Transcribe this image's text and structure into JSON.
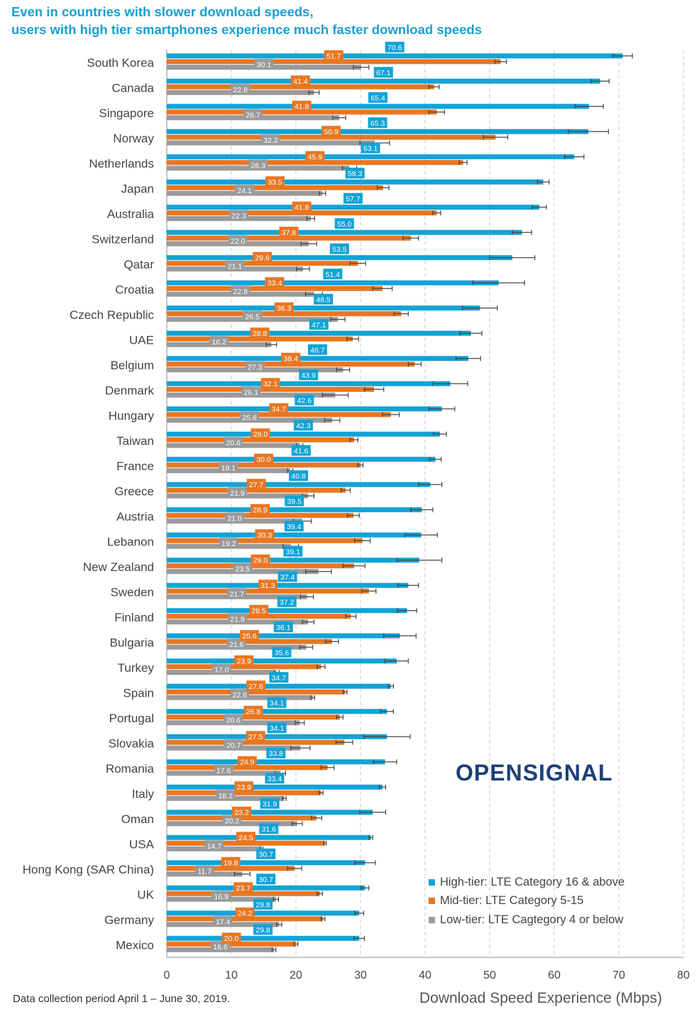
{
  "title_line1": "Even in countries with slower download speeds,",
  "title_line2": "users with high tier smartphones experience much faster download speeds",
  "footnote": "Data collection period April 1 – June 30, 2019.",
  "logo_text": "OPENSIGNAL",
  "colors": {
    "high": "#12a3d6",
    "mid": "#e87722",
    "low": "#9a9a9a",
    "title": "#1a9fd0",
    "logo": "#1c3f78"
  },
  "chart_data": {
    "type": "bar",
    "orientation": "horizontal",
    "title": "Even in countries with slower download speeds, users with high tier smartphones experience much faster download speeds",
    "xlabel": "Download Speed Experience (Mbps)",
    "xlim": [
      0,
      80
    ],
    "xticks": [
      0,
      10,
      20,
      30,
      40,
      50,
      60,
      70,
      80
    ],
    "grid": "vertical dashed",
    "legend_position": "bottom-right",
    "categories": [
      "South Korea",
      "Canada",
      "Singapore",
      "Norway",
      "Netherlands",
      "Japan",
      "Australia",
      "Switzerland",
      "Qatar",
      "Croatia",
      "Czech Republic",
      "UAE",
      "Belgium",
      "Denmark",
      "Hungary",
      "Taiwan",
      "France",
      "Greece",
      "Austria",
      "Lebanon",
      "New Zealand",
      "Sweden",
      "Finland",
      "Bulgaria",
      "Turkey",
      "Spain",
      "Portugal",
      "Slovakia",
      "Romania",
      "Italy",
      "Oman",
      "USA",
      "Hong Kong (SAR China)",
      "UK",
      "Germany",
      "Mexico"
    ],
    "series": [
      {
        "name": "High-tier: LTE Category 16 & above",
        "color": "#12a3d6",
        "values": [
          70.6,
          67.1,
          65.4,
          65.3,
          63.1,
          58.3,
          57.7,
          55.0,
          53.5,
          51.4,
          48.5,
          47.1,
          46.7,
          43.9,
          42.6,
          42.3,
          41.6,
          40.8,
          39.5,
          39.4,
          39.1,
          37.4,
          37.2,
          36.1,
          35.6,
          34.7,
          34.1,
          34.1,
          33.8,
          33.4,
          31.9,
          31.6,
          30.7,
          30.7,
          29.8,
          29.8
        ],
        "error": [
          1.5,
          1.4,
          2.2,
          3.1,
          1.5,
          0.9,
          1.1,
          1.5,
          3.5,
          4.0,
          2.7,
          1.7,
          1.9,
          2.7,
          2.0,
          1.0,
          0.9,
          1.8,
          1.7,
          2.5,
          3.5,
          1.6,
          1.5,
          2.5,
          1.8,
          0.4,
          1.0,
          3.6,
          1.8,
          0.5,
          2.0,
          0.3,
          1.6,
          0.6,
          0.7,
          0.8
        ]
      },
      {
        "name": "Mid-tier: LTE Category 5-15",
        "color": "#e87722",
        "values": [
          51.7,
          41.4,
          41.8,
          50.9,
          45.9,
          33.5,
          41.8,
          37.8,
          29.6,
          33.4,
          36.3,
          28.8,
          38.4,
          32.1,
          34.7,
          29.0,
          30.0,
          27.7,
          28.9,
          30.3,
          29.0,
          31.3,
          28.5,
          25.6,
          23.9,
          27.6,
          26.8,
          27.5,
          24.9,
          23.9,
          23.2,
          24.5,
          19.8,
          23.7,
          24.2,
          20.0
        ],
        "error": [
          0.9,
          0.8,
          1.2,
          1.9,
          0.6,
          0.9,
          0.6,
          1.2,
          1.2,
          1.5,
          1.1,
          0.9,
          1.0,
          1.5,
          1.3,
          0.6,
          0.4,
          0.7,
          0.9,
          1.2,
          1.7,
          1.1,
          0.8,
          1.0,
          0.6,
          0.3,
          0.5,
          1.3,
          1.0,
          0.3,
          0.8,
          0.2,
          1.1,
          0.4,
          0.3,
          0.3
        ]
      },
      {
        "name": "Low-tier: LTE Cagtegory 4 or below",
        "color": "#9a9a9a",
        "values": [
          30.1,
          22.8,
          26.7,
          32.2,
          28.3,
          24.1,
          22.3,
          22.0,
          21.1,
          22.8,
          26.5,
          16.2,
          27.3,
          26.1,
          25.6,
          20.6,
          19.1,
          21.9,
          21.0,
          19.2,
          23.5,
          21.7,
          21.9,
          21.6,
          17.0,
          22.6,
          20.6,
          20.7,
          17.6,
          18.2,
          20.2,
          14.7,
          11.7,
          16.9,
          17.4,
          16.6
        ],
        "error": [
          1.2,
          0.8,
          1.0,
          2.3,
          1.1,
          0.5,
          0.6,
          1.2,
          1.0,
          1.3,
          1.1,
          0.8,
          1.0,
          2.0,
          1.2,
          0.5,
          0.4,
          0.9,
          1.4,
          1.2,
          2.0,
          1.0,
          0.9,
          1.0,
          0.4,
          0.3,
          0.7,
          1.5,
          0.8,
          0.3,
          0.8,
          0.2,
          1.2,
          0.4,
          0.4,
          0.3
        ]
      }
    ]
  }
}
